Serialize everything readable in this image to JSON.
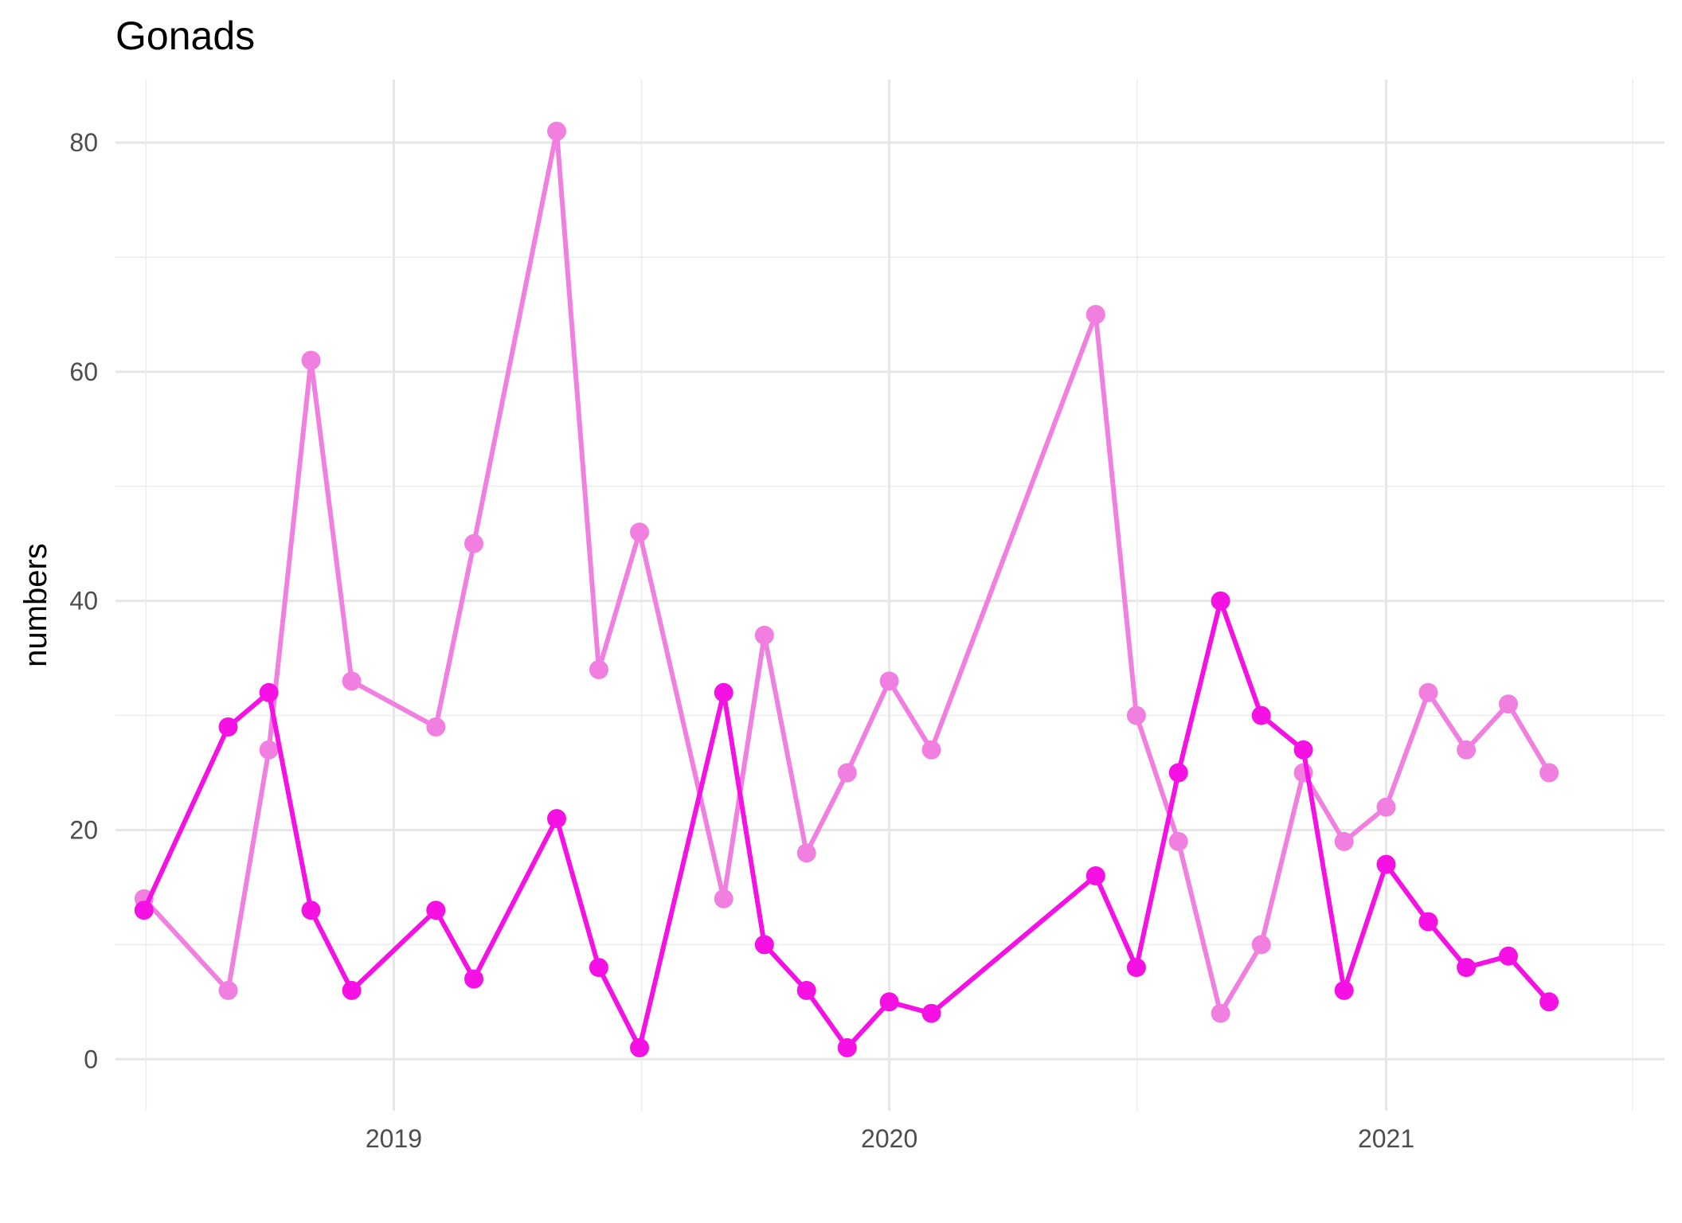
{
  "chart_data": {
    "type": "line",
    "title": "Gonads",
    "xlabel": "",
    "ylabel": "numbers",
    "x_axis_type": "date",
    "xlim": [
      "2018-06-10",
      "2021-07-25"
    ],
    "ylim": [
      -4.5,
      85.5
    ],
    "x_ticks": [
      {
        "date": "2019-01-01",
        "label": "2019"
      },
      {
        "date": "2020-01-01",
        "label": "2020"
      },
      {
        "date": "2021-01-01",
        "label": "2021"
      }
    ],
    "y_ticks": [
      0,
      20,
      40,
      60,
      80
    ],
    "grid": true,
    "legend": "none",
    "series": [
      {
        "color": "#f07fe0",
        "points": [
          {
            "x": "2018-07-01",
            "y": 14
          },
          {
            "x": "2018-09-01",
            "y": 6
          },
          {
            "x": "2018-10-01",
            "y": 27
          },
          {
            "x": "2018-11-01",
            "y": 61
          },
          {
            "x": "2018-12-01",
            "y": 33
          },
          {
            "x": "2019-02-01",
            "y": 29
          },
          {
            "x": "2019-03-01",
            "y": 45
          },
          {
            "x": "2019-05-01",
            "y": 81
          },
          {
            "x": "2019-06-01",
            "y": 34
          },
          {
            "x": "2019-07-01",
            "y": 46
          },
          {
            "x": "2019-09-01",
            "y": 14
          },
          {
            "x": "2019-10-01",
            "y": 37
          },
          {
            "x": "2019-11-01",
            "y": 18
          },
          {
            "x": "2019-12-01",
            "y": 25
          },
          {
            "x": "2020-01-01",
            "y": 33
          },
          {
            "x": "2020-02-01",
            "y": 27
          },
          {
            "x": "2020-06-01",
            "y": 65
          },
          {
            "x": "2020-07-01",
            "y": 30
          },
          {
            "x": "2020-08-01",
            "y": 19
          },
          {
            "x": "2020-09-01",
            "y": 4
          },
          {
            "x": "2020-10-01",
            "y": 10
          },
          {
            "x": "2020-11-01",
            "y": 25
          },
          {
            "x": "2020-12-01",
            "y": 19
          },
          {
            "x": "2021-01-01",
            "y": 22
          },
          {
            "x": "2021-02-01",
            "y": 32
          },
          {
            "x": "2021-03-01",
            "y": 27
          },
          {
            "x": "2021-04-01",
            "y": 31
          },
          {
            "x": "2021-05-01",
            "y": 25
          }
        ]
      },
      {
        "color": "#f511e4",
        "points": [
          {
            "x": "2018-07-01",
            "y": 13
          },
          {
            "x": "2018-09-01",
            "y": 29
          },
          {
            "x": "2018-10-01",
            "y": 32
          },
          {
            "x": "2018-11-01",
            "y": 13
          },
          {
            "x": "2018-12-01",
            "y": 6
          },
          {
            "x": "2019-02-01",
            "y": 13
          },
          {
            "x": "2019-03-01",
            "y": 7
          },
          {
            "x": "2019-05-01",
            "y": 21
          },
          {
            "x": "2019-06-01",
            "y": 8
          },
          {
            "x": "2019-07-01",
            "y": 1
          },
          {
            "x": "2019-09-01",
            "y": 32
          },
          {
            "x": "2019-10-01",
            "y": 10
          },
          {
            "x": "2019-11-01",
            "y": 6
          },
          {
            "x": "2019-12-01",
            "y": 1
          },
          {
            "x": "2020-01-01",
            "y": 5
          },
          {
            "x": "2020-02-01",
            "y": 4
          },
          {
            "x": "2020-06-01",
            "y": 16
          },
          {
            "x": "2020-07-01",
            "y": 8
          },
          {
            "x": "2020-08-01",
            "y": 25
          },
          {
            "x": "2020-09-01",
            "y": 40
          },
          {
            "x": "2020-10-01",
            "y": 30
          },
          {
            "x": "2020-11-01",
            "y": 27
          },
          {
            "x": "2020-12-01",
            "y": 6
          },
          {
            "x": "2021-01-01",
            "y": 17
          },
          {
            "x": "2021-02-01",
            "y": 12
          },
          {
            "x": "2021-03-01",
            "y": 8
          },
          {
            "x": "2021-04-01",
            "y": 9
          },
          {
            "x": "2021-05-01",
            "y": 5
          }
        ]
      }
    ]
  }
}
